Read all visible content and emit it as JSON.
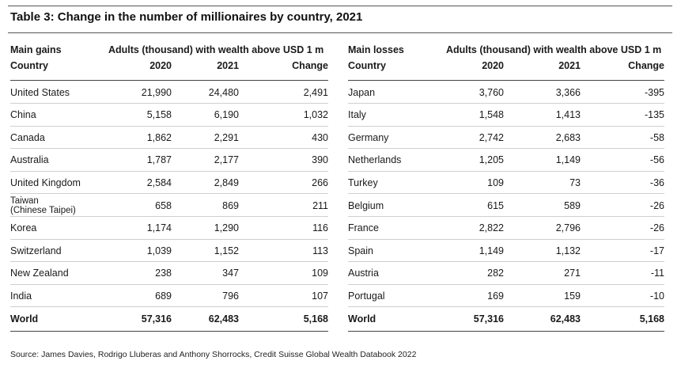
{
  "title": "Table 3: Change in the number of millionaires by country, 2021",
  "header": {
    "gains_label": "Main gains",
    "losses_label": "Main losses",
    "wealth_label": "Adults (thousand) with wealth above USD 1 m",
    "country_label": "Country",
    "col_2020": "2020",
    "col_2021": "2021",
    "col_change": "Change"
  },
  "gains": [
    {
      "country": "United States",
      "y2020": "21,990",
      "y2021": "24,480",
      "change": "2,491"
    },
    {
      "country": "China",
      "y2020": "5,158",
      "y2021": "6,190",
      "change": "1,032"
    },
    {
      "country": "Canada",
      "y2020": "1,862",
      "y2021": "2,291",
      "change": "430"
    },
    {
      "country": "Australia",
      "y2020": "1,787",
      "y2021": "2,177",
      "change": "390"
    },
    {
      "country": "United Kingdom",
      "y2020": "2,584",
      "y2021": "2,849",
      "change": "266"
    },
    {
      "country": "Taiwan",
      "country_line2": "(Chinese Taipei)",
      "y2020": "658",
      "y2021": "869",
      "change": "211"
    },
    {
      "country": "Korea",
      "y2020": "1,174",
      "y2021": "1,290",
      "change": "116"
    },
    {
      "country": "Switzerland",
      "y2020": "1,039",
      "y2021": "1,152",
      "change": "113"
    },
    {
      "country": "New Zealand",
      "y2020": "238",
      "y2021": "347",
      "change": "109"
    },
    {
      "country": "India",
      "y2020": "689",
      "y2021": "796",
      "change": "107"
    }
  ],
  "gains_total": {
    "country": "World",
    "y2020": "57,316",
    "y2021": "62,483",
    "change": "5,168"
  },
  "losses": [
    {
      "country": "Japan",
      "y2020": "3,760",
      "y2021": "3,366",
      "change": "-395"
    },
    {
      "country": "Italy",
      "y2020": "1,548",
      "y2021": "1,413",
      "change": "-135"
    },
    {
      "country": "Germany",
      "y2020": "2,742",
      "y2021": "2,683",
      "change": "-58"
    },
    {
      "country": "Netherlands",
      "y2020": "1,205",
      "y2021": "1,149",
      "change": "-56"
    },
    {
      "country": "Turkey",
      "y2020": "109",
      "y2021": "73",
      "change": "-36"
    },
    {
      "country": "Belgium",
      "y2020": "615",
      "y2021": "589",
      "change": "-26"
    },
    {
      "country": "France",
      "y2020": "2,822",
      "y2021": "2,796",
      "change": "-26"
    },
    {
      "country": "Spain",
      "y2020": "1,149",
      "y2021": "1,132",
      "change": "-17"
    },
    {
      "country": "Austria",
      "y2020": "282",
      "y2021": "271",
      "change": "-11"
    },
    {
      "country": "Portugal",
      "y2020": "169",
      "y2021": "159",
      "change": "-10"
    }
  ],
  "losses_total": {
    "country": "World",
    "y2020": "57,316",
    "y2021": "62,483",
    "change": "5,168"
  },
  "source": "Source: James Davies, Rodrigo Lluberas and Anthony Shorrocks, Credit Suisse Global Wealth Databook 2022"
}
